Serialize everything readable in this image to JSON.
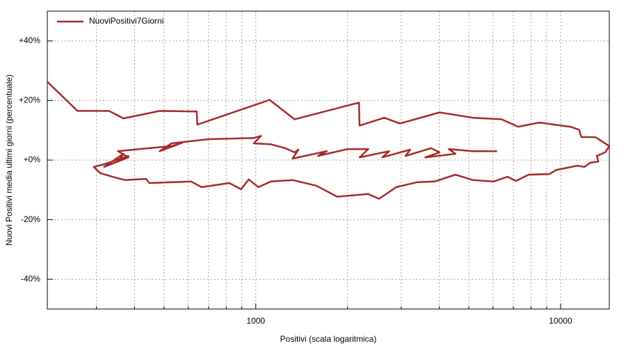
{
  "chart_data": {
    "type": "line",
    "x_log": true,
    "grid": true,
    "legend": "top-left",
    "xlabel": "Positivi (scala logaritmica)",
    "ylabel": "Nuovi Positivi media ultimi giorni (percentuale)",
    "xlim": [
      207,
      14450
    ],
    "ylim": [
      -50,
      50
    ],
    "xticks": [
      1000,
      10000
    ],
    "xminor": [
      300,
      400,
      500,
      600,
      700,
      800,
      900,
      2000,
      3000,
      4000,
      5000,
      6000,
      7000,
      8000,
      9000
    ],
    "yticks": [
      {
        "value": -40,
        "label": "-40%"
      },
      {
        "value": -20,
        "label": "-20%"
      },
      {
        "value": 0,
        "label": "+0%"
      },
      {
        "value": 20,
        "label": "+20%"
      },
      {
        "value": 40,
        "label": "+40%"
      }
    ],
    "x": [
      207,
      260,
      330,
      368,
      484,
      640,
      643,
      1110,
      1340,
      2180,
      2190,
      2640,
      2970,
      4010,
      5160,
      6400,
      7260,
      8530,
      10760,
      11500,
      11700,
      13000,
      14450,
      14000,
      13150,
      13300,
      12500,
      11970,
      11350,
      9690,
      9190,
      7850,
      7140,
      6700,
      6030,
      5160,
      4520,
      3860,
      3390,
      2890,
      2540,
      2340,
      1850,
      1580,
      1320,
      1120,
      1020,
      948,
      895,
      819,
      664,
      614,
      448,
      436,
      372,
      344,
      309,
      294,
      318,
      382,
      353,
      368,
      318,
      382,
      353,
      413,
      529,
      573,
      484,
      529,
      700,
      985,
      1040,
      985,
      1120,
      1250,
      1340,
      1380,
      1320,
      1710,
      1600,
      2000,
      2340,
      2190,
      2740,
      2600,
      3210,
      3100,
      3760,
      4010,
      3600,
      4520,
      4300,
      5160,
      6190
    ],
    "series": [
      {
        "name": "NuoviPositivi7Giorni",
        "color": "#a52a2a",
        "values": [
          26.3,
          16.5,
          16.5,
          14.0,
          16.5,
          16.3,
          11.9,
          20.2,
          13.7,
          19.3,
          11.6,
          14.2,
          12.3,
          16.0,
          14.2,
          13.7,
          11.2,
          12.6,
          11.2,
          10.2,
          7.7,
          7.7,
          4.7,
          2.6,
          1.4,
          -0.5,
          -0.9,
          -2.3,
          -1.9,
          -3.3,
          -4.7,
          -4.9,
          -7.0,
          -5.6,
          -7.2,
          -6.7,
          -4.9,
          -7.2,
          -7.4,
          -9.1,
          -13.0,
          -11.4,
          -12.3,
          -8.6,
          -6.7,
          -7.2,
          -9.1,
          -6.5,
          -9.8,
          -7.7,
          -9.1,
          -7.2,
          -7.7,
          -6.3,
          -6.7,
          -5.8,
          -4.4,
          -2.3,
          -1.4,
          1.4,
          -0.5,
          2.1,
          -2.3,
          0.9,
          3.0,
          3.7,
          4.7,
          5.8,
          3.0,
          5.6,
          7.0,
          7.4,
          8.1,
          5.6,
          5.3,
          4.0,
          2.6,
          3.5,
          0.5,
          3.0,
          1.4,
          3.7,
          3.7,
          0.9,
          3.0,
          0.9,
          3.5,
          1.4,
          4.0,
          2.6,
          0.9,
          2.1,
          3.7,
          3.0,
          3.0
        ]
      }
    ]
  }
}
